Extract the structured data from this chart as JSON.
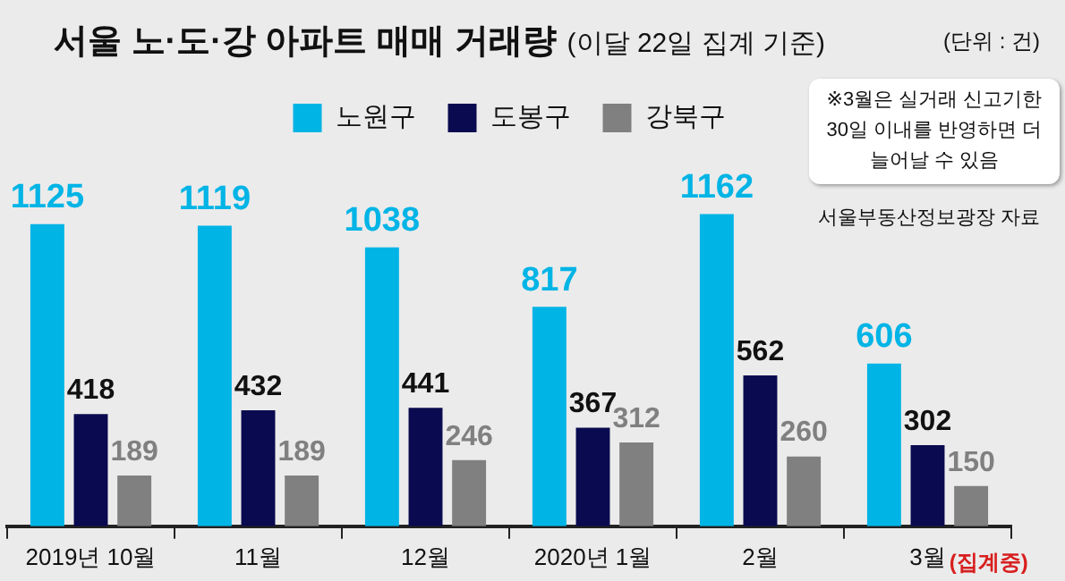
{
  "chart_data": {
    "type": "bar",
    "title": "서울 노·도·강 아파트 매매 거래량",
    "subtitle": "(이달 22일 집계 기준)",
    "categories": [
      "2019년 10월",
      "11월",
      "12월",
      "2020년 1월",
      "2월",
      "3월"
    ],
    "series": [
      {
        "name": "노원구",
        "color": "#00b4e6",
        "values": [
          1125,
          1119,
          1038,
          817,
          1162,
          606
        ]
      },
      {
        "name": "도봉구",
        "color": "#0a0a50",
        "values": [
          418,
          432,
          441,
          367,
          562,
          302
        ]
      },
      {
        "name": "강북구",
        "color": "#808080",
        "values": [
          189,
          189,
          246,
          312,
          260,
          150
        ]
      }
    ],
    "data_labels": true,
    "legend": "top",
    "grid": false,
    "annotations": [
      "(단위 : 건)",
      "※3월은 실거래 신고기한 30일 이내를 반영하면 더 늘어날 수 있음",
      "서울부동산정보광장 자료",
      "(집계중)"
    ]
  }
}
